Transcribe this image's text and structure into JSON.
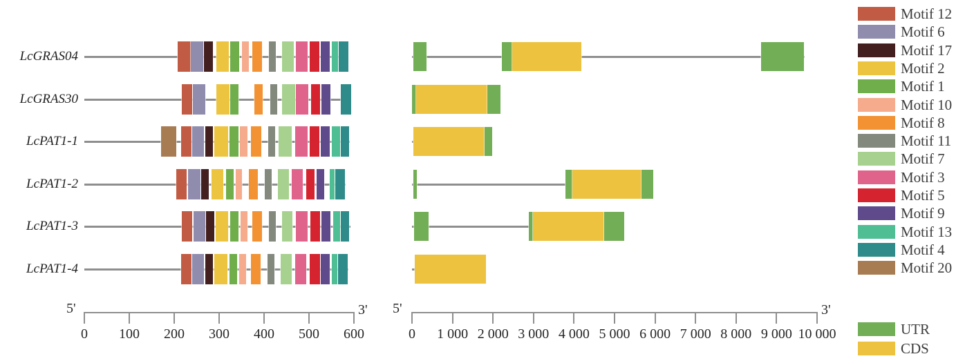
{
  "chart_data": {
    "type": "gene-structure",
    "title": "",
    "description": "Conserved motif composition (left, amino-acid scale) and exon-intron structure (right, base-pair scale) of LcGRAS/LcPAT1 genes",
    "genes": [
      "LcGRAS04",
      "LcGRAS30",
      "LcPAT1-1",
      "LcPAT1-2",
      "LcPAT1-3",
      "LcPAT1-4"
    ],
    "motif_panel": {
      "axis": {
        "five_prime": "5'",
        "three_prime": "3'",
        "xlim": [
          0,
          600
        ],
        "ticks": [
          0,
          100,
          200,
          300,
          400,
          500,
          600
        ],
        "tick_labels": [
          "0",
          "100",
          "200",
          "300",
          "400",
          "500",
          "600"
        ]
      },
      "rows": [
        {
          "gene": "LcGRAS04",
          "length": 588,
          "motifs": [
            {
              "motif": 12,
              "start": 207,
              "end": 237
            },
            {
              "motif": 6,
              "start": 237,
              "end": 265
            },
            {
              "motif": 17,
              "start": 266,
              "end": 286
            },
            {
              "motif": 2,
              "start": 294,
              "end": 322
            },
            {
              "motif": 1,
              "start": 325,
              "end": 345
            },
            {
              "motif": 10,
              "start": 351,
              "end": 366
            },
            {
              "motif": 8,
              "start": 374,
              "end": 395
            },
            {
              "motif": 11,
              "start": 411,
              "end": 426
            },
            {
              "motif": 7,
              "start": 440,
              "end": 466
            },
            {
              "motif": 3,
              "start": 471,
              "end": 497
            },
            {
              "motif": 5,
              "start": 502,
              "end": 523
            },
            {
              "motif": 9,
              "start": 526,
              "end": 546
            },
            {
              "motif": 13,
              "start": 551,
              "end": 565
            },
            {
              "motif": 4,
              "start": 566,
              "end": 588
            }
          ]
        },
        {
          "gene": "LcGRAS30",
          "length": 594,
          "motifs": [
            {
              "motif": 12,
              "start": 217,
              "end": 240
            },
            {
              "motif": 6,
              "start": 242,
              "end": 269
            },
            {
              "motif": 2,
              "start": 294,
              "end": 323
            },
            {
              "motif": 1,
              "start": 325,
              "end": 343
            },
            {
              "motif": 8,
              "start": 378,
              "end": 397
            },
            {
              "motif": 11,
              "start": 414,
              "end": 429
            },
            {
              "motif": 7,
              "start": 440,
              "end": 469
            },
            {
              "motif": 3,
              "start": 471,
              "end": 498
            },
            {
              "motif": 5,
              "start": 505,
              "end": 525
            },
            {
              "motif": 9,
              "start": 528,
              "end": 548
            },
            {
              "motif": 4,
              "start": 571,
              "end": 594
            }
          ]
        },
        {
          "gene": "LcPAT1-1",
          "length": 590,
          "motifs": [
            {
              "motif": 20,
              "start": 171,
              "end": 205
            },
            {
              "motif": 12,
              "start": 215,
              "end": 238
            },
            {
              "motif": 6,
              "start": 240,
              "end": 266
            },
            {
              "motif": 17,
              "start": 269,
              "end": 286
            },
            {
              "motif": 2,
              "start": 289,
              "end": 320
            },
            {
              "motif": 1,
              "start": 323,
              "end": 343
            },
            {
              "motif": 10,
              "start": 346,
              "end": 363
            },
            {
              "motif": 8,
              "start": 371,
              "end": 394
            },
            {
              "motif": 11,
              "start": 409,
              "end": 425
            },
            {
              "motif": 7,
              "start": 432,
              "end": 462
            },
            {
              "motif": 3,
              "start": 469,
              "end": 497
            },
            {
              "motif": 5,
              "start": 502,
              "end": 523
            },
            {
              "motif": 9,
              "start": 526,
              "end": 546
            },
            {
              "motif": 13,
              "start": 551,
              "end": 569
            },
            {
              "motif": 4,
              "start": 571,
              "end": 590
            }
          ]
        },
        {
          "gene": "LcPAT1-2",
          "length": 582,
          "motifs": [
            {
              "motif": 12,
              "start": 205,
              "end": 228
            },
            {
              "motif": 6,
              "start": 231,
              "end": 258
            },
            {
              "motif": 17,
              "start": 260,
              "end": 277
            },
            {
              "motif": 2,
              "start": 283,
              "end": 309
            },
            {
              "motif": 1,
              "start": 315,
              "end": 332
            },
            {
              "motif": 10,
              "start": 337,
              "end": 351
            },
            {
              "motif": 8,
              "start": 366,
              "end": 386
            },
            {
              "motif": 11,
              "start": 402,
              "end": 417
            },
            {
              "motif": 7,
              "start": 431,
              "end": 455
            },
            {
              "motif": 3,
              "start": 462,
              "end": 486
            },
            {
              "motif": 5,
              "start": 494,
              "end": 512
            },
            {
              "motif": 9,
              "start": 517,
              "end": 534
            },
            {
              "motif": 13,
              "start": 546,
              "end": 557
            },
            {
              "motif": 4,
              "start": 558,
              "end": 580
            }
          ]
        },
        {
          "gene": "LcPAT1-3",
          "length": 592,
          "motifs": [
            {
              "motif": 12,
              "start": 217,
              "end": 240
            },
            {
              "motif": 6,
              "start": 243,
              "end": 269
            },
            {
              "motif": 17,
              "start": 271,
              "end": 289
            },
            {
              "motif": 2,
              "start": 292,
              "end": 320
            },
            {
              "motif": 1,
              "start": 325,
              "end": 343
            },
            {
              "motif": 10,
              "start": 348,
              "end": 363
            },
            {
              "motif": 8,
              "start": 374,
              "end": 395
            },
            {
              "motif": 11,
              "start": 411,
              "end": 426
            },
            {
              "motif": 7,
              "start": 440,
              "end": 463
            },
            {
              "motif": 3,
              "start": 471,
              "end": 497
            },
            {
              "motif": 5,
              "start": 503,
              "end": 525
            },
            {
              "motif": 9,
              "start": 528,
              "end": 548
            },
            {
              "motif": 13,
              "start": 554,
              "end": 569
            },
            {
              "motif": 4,
              "start": 571,
              "end": 590
            }
          ]
        },
        {
          "gene": "LcPAT1-4",
          "length": 588,
          "motifs": [
            {
              "motif": 12,
              "start": 215,
              "end": 238
            },
            {
              "motif": 6,
              "start": 240,
              "end": 266
            },
            {
              "motif": 17,
              "start": 269,
              "end": 286
            },
            {
              "motif": 2,
              "start": 289,
              "end": 318
            },
            {
              "motif": 1,
              "start": 323,
              "end": 340
            },
            {
              "motif": 10,
              "start": 345,
              "end": 360
            },
            {
              "motif": 8,
              "start": 371,
              "end": 392
            },
            {
              "motif": 11,
              "start": 408,
              "end": 423
            },
            {
              "motif": 7,
              "start": 437,
              "end": 462
            },
            {
              "motif": 3,
              "start": 469,
              "end": 494
            },
            {
              "motif": 5,
              "start": 502,
              "end": 525
            },
            {
              "motif": 9,
              "start": 526,
              "end": 546
            },
            {
              "motif": 13,
              "start": 551,
              "end": 563
            },
            {
              "motif": 4,
              "start": 565,
              "end": 586
            }
          ]
        }
      ]
    },
    "gene_panel": {
      "axis": {
        "five_prime": "5'",
        "three_prime": "3'",
        "xlim": [
          0,
          10000
        ],
        "ticks": [
          0,
          1000,
          2000,
          3000,
          4000,
          5000,
          6000,
          7000,
          8000,
          9000,
          10000
        ],
        "tick_labels": [
          "0",
          "1 000",
          "2 000",
          "3 000",
          "4 000",
          "5 000",
          "6 000",
          "7 000",
          "8 000",
          "9 000",
          "10 000"
        ]
      },
      "rows": [
        {
          "gene": "LcGRAS04",
          "length": 9690,
          "segments": [
            {
              "type": "UTR",
              "start": 30,
              "end": 360
            },
            {
              "type": "UTR",
              "start": 2225,
              "end": 2470
            },
            {
              "type": "CDS",
              "start": 2470,
              "end": 4180
            },
            {
              "type": "UTR",
              "start": 8610,
              "end": 9680
            }
          ]
        },
        {
          "gene": "LcGRAS30",
          "length": 2185,
          "segments": [
            {
              "type": "UTR",
              "start": 0,
              "end": 100
            },
            {
              "type": "CDS",
              "start": 100,
              "end": 1855
            },
            {
              "type": "UTR",
              "start": 1855,
              "end": 2185
            }
          ]
        },
        {
          "gene": "LcPAT1-1",
          "length": 1980,
          "segments": [
            {
              "type": "CDS",
              "start": 40,
              "end": 1800
            },
            {
              "type": "UTR",
              "start": 1800,
              "end": 1980
            }
          ]
        },
        {
          "gene": "LcPAT1-2",
          "length": 5960,
          "segments": [
            {
              "type": "UTR",
              "start": 30,
              "end": 120
            },
            {
              "type": "UTR",
              "start": 3790,
              "end": 3960
            },
            {
              "type": "CDS",
              "start": 3960,
              "end": 5665
            },
            {
              "type": "UTR",
              "start": 5665,
              "end": 5960
            }
          ]
        },
        {
          "gene": "LcPAT1-3",
          "length": 5240,
          "segments": [
            {
              "type": "UTR",
              "start": 45,
              "end": 405
            },
            {
              "type": "UTR",
              "start": 2880,
              "end": 2980
            },
            {
              "type": "CDS",
              "start": 2980,
              "end": 4745
            },
            {
              "type": "UTR",
              "start": 4745,
              "end": 5240
            }
          ]
        },
        {
          "gene": "LcPAT1-4",
          "length": 1825,
          "segments": [
            {
              "type": "CDS",
              "start": 60,
              "end": 1825
            }
          ]
        }
      ]
    },
    "legend": {
      "motifs": [
        {
          "id": 12,
          "label": "Motif 12",
          "color": "#c15b43"
        },
        {
          "id": 6,
          "label": "Motif 6",
          "color": "#8f8cae"
        },
        {
          "id": 17,
          "label": "Motif 17",
          "color": "#43201f"
        },
        {
          "id": 2,
          "label": "Motif 2",
          "color": "#edc440"
        },
        {
          "id": 1,
          "label": "Motif 1",
          "color": "#6fae4a"
        },
        {
          "id": 10,
          "label": "Motif 10",
          "color": "#f5ab8c"
        },
        {
          "id": 8,
          "label": "Motif 8",
          "color": "#f29233"
        },
        {
          "id": 11,
          "label": "Motif 11",
          "color": "#83897d"
        },
        {
          "id": 7,
          "label": "Motif 7",
          "color": "#a7d18e"
        },
        {
          "id": 3,
          "label": "Motif 3",
          "color": "#e0638b"
        },
        {
          "id": 5,
          "label": "Motif 5",
          "color": "#d52330"
        },
        {
          "id": 9,
          "label": "Motif 9",
          "color": "#5f4a8c"
        },
        {
          "id": 13,
          "label": "Motif 13",
          "color": "#50be95"
        },
        {
          "id": 4,
          "label": "Motif 4",
          "color": "#2e8b89"
        },
        {
          "id": 20,
          "label": "Motif 20",
          "color": "#a87c53"
        }
      ],
      "features": [
        {
          "id": "UTR",
          "label": "UTR",
          "color": "#72ae55"
        },
        {
          "id": "CDS",
          "label": "CDS",
          "color": "#ecc23f"
        }
      ]
    }
  }
}
